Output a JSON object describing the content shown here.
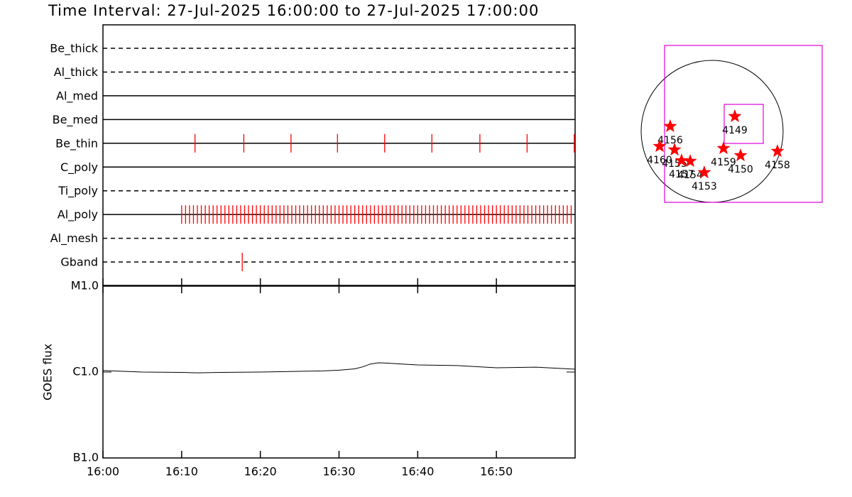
{
  "chart_data": [
    {
      "type": "timeline",
      "title": "Time Interval: 27-Jul-2025 16:00:00 to 27-Jul-2025 17:00:00",
      "categories": [
        "Be_thick",
        "Al_thick",
        "Al_med",
        "Be_med",
        "Be_thin",
        "C_poly",
        "Ti_poly",
        "Al_poly",
        "Al_mesh",
        "Gband"
      ],
      "line_styles": [
        "dashed",
        "dashed",
        "solid",
        "solid",
        "solid",
        "solid",
        "dashed",
        "solid",
        "dashed",
        "dashed"
      ],
      "events": [
        [],
        [],
        [],
        [],
        [
          11.7,
          17.9,
          23.9,
          29.8,
          35.8,
          41.8,
          47.9,
          53.9,
          59.9
        ],
        [],
        [],
        [
          10,
          10.5,
          11,
          11.5,
          12,
          12.5,
          13,
          13.5,
          14,
          14.5,
          15,
          15.5,
          16,
          16.5,
          17,
          17.5,
          18,
          18.5,
          19,
          19.5,
          20,
          20.5,
          21,
          21.5,
          22,
          22.5,
          23,
          23.5,
          24,
          24.5,
          25,
          25.5,
          26,
          26.5,
          27,
          27.5,
          28,
          28.5,
          29,
          29.5,
          30,
          30.5,
          31,
          31.5,
          32,
          32.5,
          33,
          33.5,
          34,
          34.5,
          35,
          35.5,
          36,
          36.5,
          37,
          37.5,
          38,
          38.5,
          39,
          39.5,
          40,
          40.5,
          41,
          41.5,
          42,
          42.5,
          43,
          43.5,
          44,
          44.5,
          45,
          45.5,
          46,
          46.5,
          47,
          47.5,
          48,
          48.5,
          49,
          49.5,
          50,
          50.5,
          51,
          51.5,
          52,
          52.5,
          53,
          53.5,
          54,
          54.5,
          55,
          55.5,
          56,
          56.5,
          57,
          57.5,
          58,
          58.5,
          59,
          59.5
        ],
        [],
        [
          17.7
        ]
      ],
      "color": "#ff0000",
      "xlim": [
        0,
        60
      ]
    },
    {
      "type": "line",
      "ylabel": "GOES flux",
      "x": [
        0,
        5,
        10,
        12,
        15,
        20,
        25,
        28,
        30,
        32,
        33,
        34,
        35,
        36,
        38,
        40,
        45,
        50,
        55,
        60
      ],
      "values": [
        1.04e-06,
        1e-06,
        9.9e-07,
        9.8e-07,
        9.9e-07,
        1e-06,
        1.02e-06,
        1.03e-06,
        1.05e-06,
        1.09e-06,
        1.15e-06,
        1.24e-06,
        1.28e-06,
        1.27e-06,
        1.24e-06,
        1.21e-06,
        1.19e-06,
        1.12e-06,
        1.14e-06,
        1.08e-06
      ],
      "color": "#000000",
      "log_scale": true,
      "ylim": [
        1e-07,
        1e-05
      ],
      "yticks": [
        {
          "value": 1e-07,
          "label": "B1.0"
        },
        {
          "value": 1e-06,
          "label": "C1.0"
        },
        {
          "value": 1e-05,
          "label": "M1.0"
        }
      ],
      "xlim": [
        0,
        60
      ],
      "xticks": [
        {
          "value": 0,
          "label": "16:00"
        },
        {
          "value": 10,
          "label": "16:10"
        },
        {
          "value": 20,
          "label": "16:20"
        },
        {
          "value": 30,
          "label": "16:30"
        },
        {
          "value": 40,
          "label": "16:40"
        },
        {
          "value": 50,
          "label": "16:50"
        }
      ]
    },
    {
      "type": "scatter",
      "labels": [
        "4149",
        "4156",
        "4160",
        "4155",
        "4157",
        "4154",
        "4153",
        "4159",
        "4150",
        "4158"
      ],
      "x": [
        304,
        -561,
        -703,
        -503,
        -409,
        -294,
        -105,
        152,
        380,
        874
      ],
      "y": [
        200,
        67,
        -200,
        -247,
        -390,
        -399,
        -551,
        -228,
        -323,
        -266
      ],
      "color": "#ff0000"
    }
  ]
}
